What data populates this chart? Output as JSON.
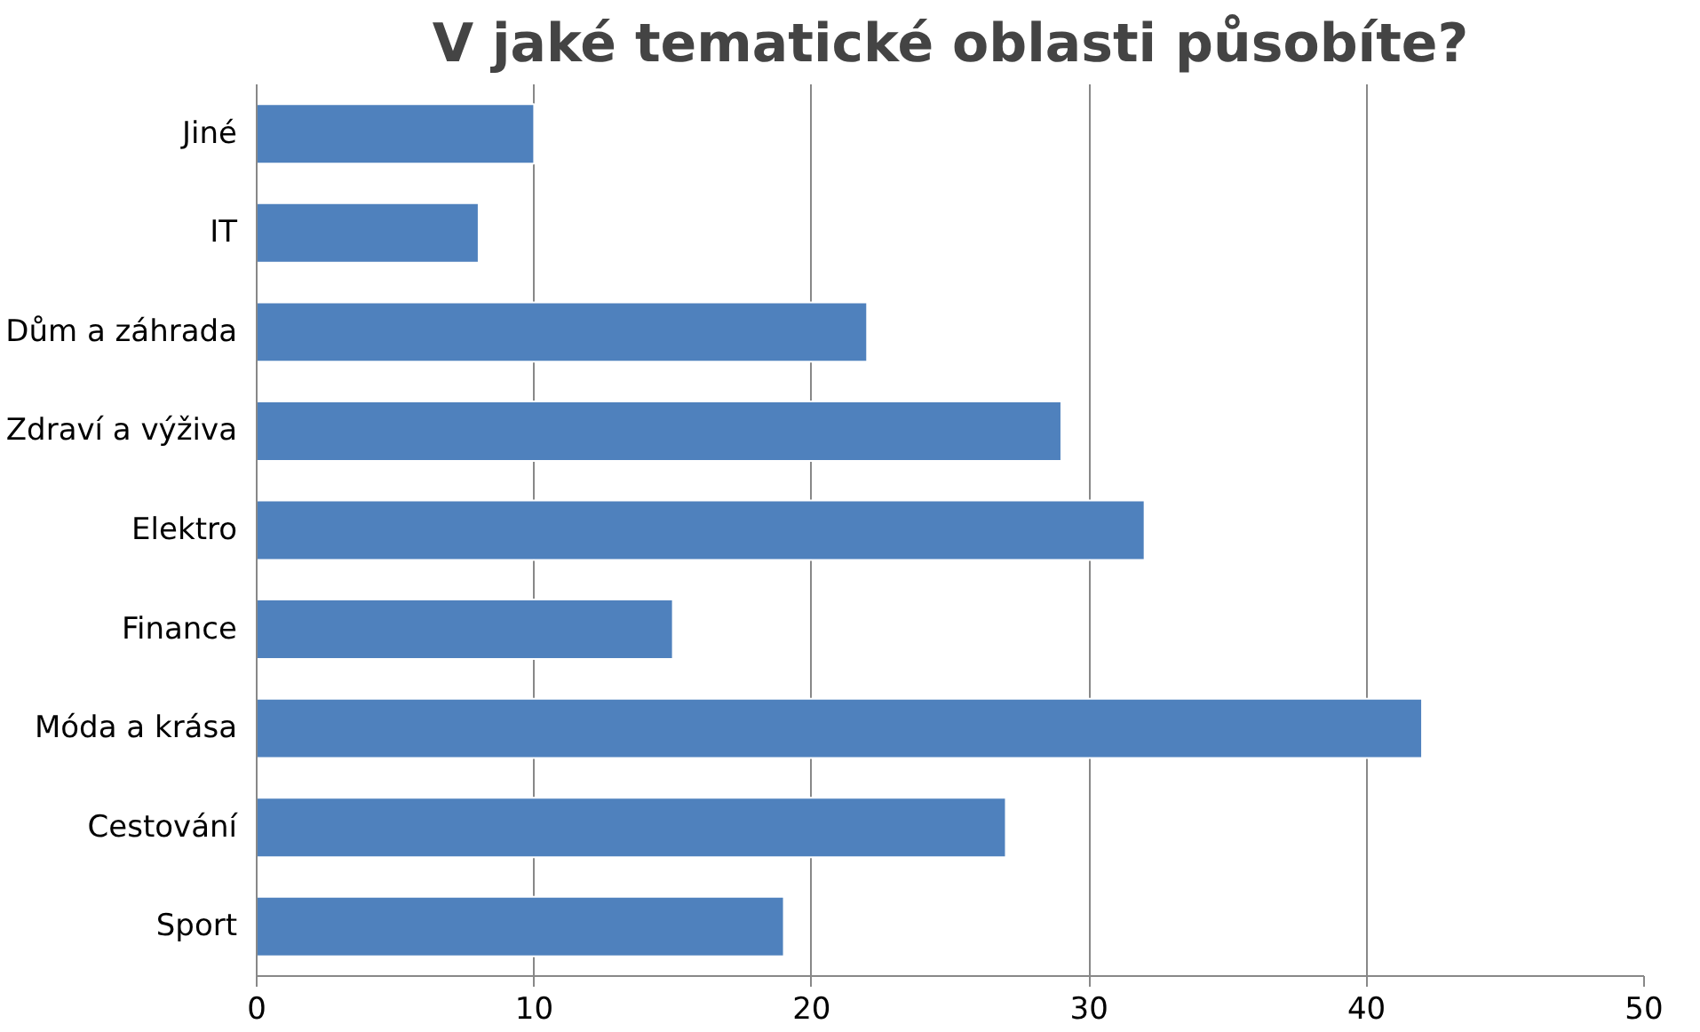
{
  "chart_data": {
    "type": "bar",
    "orientation": "horizontal",
    "title": "V jaké tematické oblasti působíte?",
    "categories": [
      "Jiné",
      "IT",
      "Dům a záhrada",
      "Zdraví a výživa",
      "Elektro",
      "Finance",
      "Móda a krása",
      "Cestování",
      "Sport"
    ],
    "values": [
      10,
      8,
      22,
      29,
      32,
      15,
      42,
      27,
      19
    ],
    "color": "#4f81bd",
    "xlim": [
      0,
      50
    ],
    "xticks": [
      0,
      10,
      20,
      30,
      40,
      50
    ],
    "grid": "x"
  }
}
